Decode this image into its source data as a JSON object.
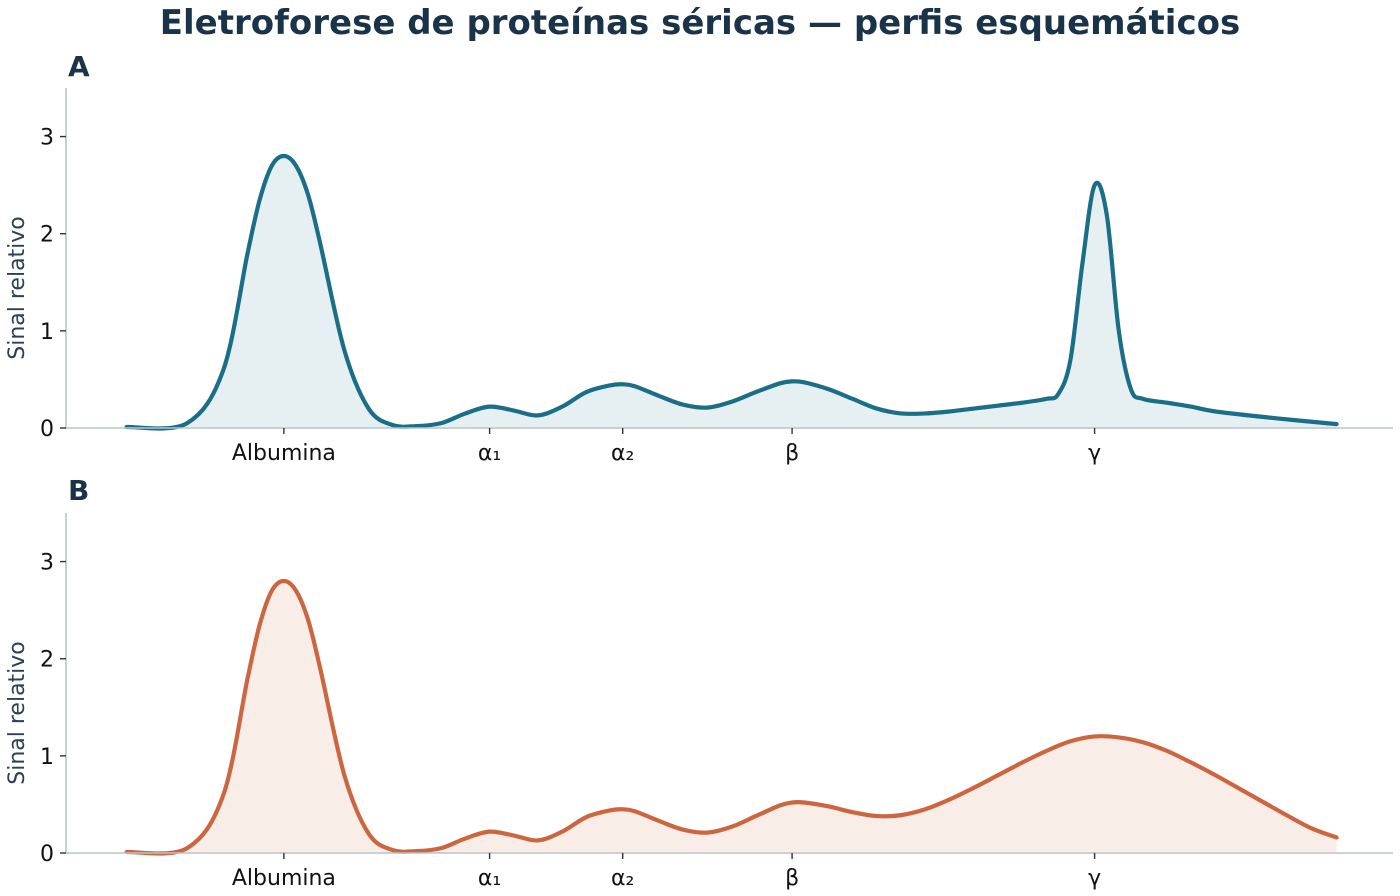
{
  "title": "Eletroforese de proteínas séricas — perfis esquemáticos",
  "colors": {
    "A": "#1b6e87",
    "B": "#cc6640",
    "title": "#1b3349"
  },
  "chart_data": [
    {
      "type": "area",
      "panel": "A",
      "xlabel": "",
      "ylabel": "Sinal relativo",
      "ylim": [
        0,
        3.5
      ],
      "yticks": [
        0,
        1,
        2,
        3
      ],
      "xlim": [
        0,
        100
      ],
      "categories": [
        "Albumina",
        "α₁",
        "α₂",
        "β",
        "γ"
      ],
      "category_positions": [
        13,
        30,
        41,
        55,
        80
      ],
      "x": [
        -5,
        0,
        5,
        8,
        10,
        11,
        12,
        13,
        14,
        15,
        16,
        18,
        20,
        22,
        24,
        26,
        28,
        30,
        32,
        34,
        36,
        38,
        40,
        41,
        42,
        44,
        46,
        48,
        50,
        52,
        54,
        55,
        56,
        58,
        60,
        62,
        64,
        66,
        68,
        70,
        72,
        74,
        76,
        77,
        78,
        79,
        80,
        81,
        82,
        83,
        84,
        86,
        88,
        90,
        95,
        100
      ],
      "y": [
        0.01,
        0.01,
        0.05,
        0.6,
        1.8,
        2.35,
        2.7,
        2.8,
        2.7,
        2.4,
        1.9,
        0.8,
        0.2,
        0.03,
        0.02,
        0.05,
        0.15,
        0.22,
        0.18,
        0.13,
        0.22,
        0.37,
        0.44,
        0.45,
        0.43,
        0.33,
        0.24,
        0.21,
        0.27,
        0.37,
        0.46,
        0.48,
        0.47,
        0.4,
        0.3,
        0.2,
        0.15,
        0.15,
        0.17,
        0.2,
        0.23,
        0.26,
        0.3,
        0.35,
        0.7,
        1.7,
        2.5,
        2.2,
        1.0,
        0.4,
        0.3,
        0.26,
        0.22,
        0.17,
        0.1,
        0.04
      ]
    },
    {
      "type": "area",
      "panel": "B",
      "xlabel": "",
      "ylabel": "Sinal relativo",
      "ylim": [
        0,
        3.5
      ],
      "yticks": [
        0,
        1,
        2,
        3
      ],
      "xlim": [
        0,
        100
      ],
      "categories": [
        "Albumina",
        "α₁",
        "α₂",
        "β",
        "γ"
      ],
      "category_positions": [
        13,
        30,
        41,
        55,
        80
      ],
      "x": [
        -5,
        0,
        5,
        8,
        10,
        11,
        12,
        13,
        14,
        15,
        16,
        18,
        20,
        22,
        24,
        26,
        28,
        30,
        32,
        34,
        36,
        38,
        40,
        41,
        42,
        44,
        46,
        48,
        50,
        52,
        54,
        55,
        56,
        58,
        60,
        62,
        64,
        66,
        68,
        70,
        72,
        74,
        76,
        78,
        80,
        82,
        84,
        86,
        88,
        90,
        92,
        94,
        96,
        98,
        100
      ],
      "y": [
        0.01,
        0.01,
        0.05,
        0.6,
        1.8,
        2.35,
        2.7,
        2.8,
        2.7,
        2.4,
        1.9,
        0.8,
        0.2,
        0.03,
        0.02,
        0.05,
        0.15,
        0.22,
        0.18,
        0.13,
        0.22,
        0.37,
        0.44,
        0.45,
        0.43,
        0.33,
        0.24,
        0.21,
        0.27,
        0.38,
        0.49,
        0.52,
        0.52,
        0.48,
        0.42,
        0.38,
        0.39,
        0.45,
        0.55,
        0.67,
        0.8,
        0.93,
        1.05,
        1.15,
        1.2,
        1.19,
        1.14,
        1.05,
        0.93,
        0.8,
        0.66,
        0.52,
        0.38,
        0.25,
        0.16
      ]
    }
  ]
}
